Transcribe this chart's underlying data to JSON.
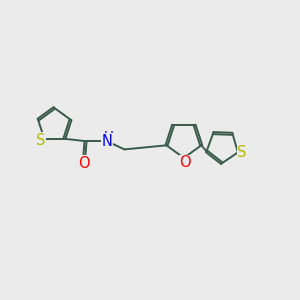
{
  "bg_color": "#ebebeb",
  "bond_color": "#3a5a4a",
  "S_color": "#b8b800",
  "O_color": "#ff0000",
  "N_color": "#0000ff",
  "bond_width": 1.4,
  "font_size": 10.5,
  "xlim": [
    0,
    10
  ],
  "ylim": [
    0,
    10
  ]
}
